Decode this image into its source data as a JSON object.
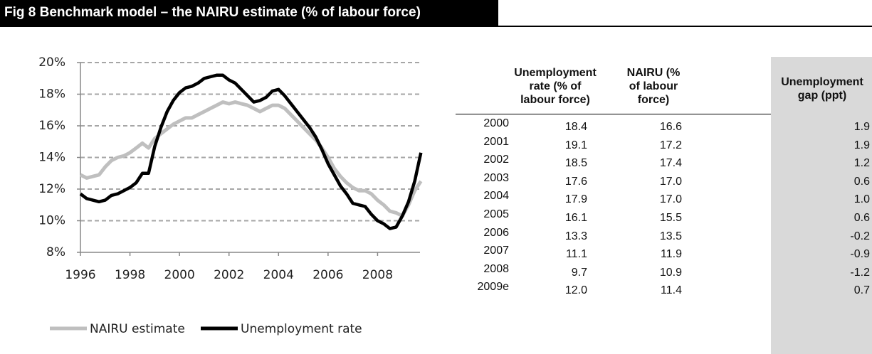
{
  "title": "Fig 8 Benchmark model – the NAIRU estimate (% of labour force)",
  "chart_data": {
    "type": "line",
    "x": [
      1996,
      1996.25,
      1996.5,
      1996.75,
      1997,
      1997.25,
      1997.5,
      1997.75,
      1998,
      1998.25,
      1998.5,
      1998.75,
      1999,
      1999.25,
      1999.5,
      1999.75,
      2000,
      2000.25,
      2000.5,
      2000.75,
      2001,
      2001.25,
      2001.5,
      2001.75,
      2002,
      2002.25,
      2002.5,
      2002.75,
      2003,
      2003.25,
      2003.5,
      2003.75,
      2004,
      2004.25,
      2004.5,
      2004.75,
      2005,
      2005.25,
      2005.5,
      2005.75,
      2006,
      2006.25,
      2006.5,
      2006.75,
      2007,
      2007.25,
      2007.5,
      2007.75,
      2008,
      2008.25,
      2008.5,
      2008.75,
      2009,
      2009.25,
      2009.5,
      2009.75
    ],
    "series": [
      {
        "name": "NAIRU estimate",
        "color": "#bfbfbf",
        "values": [
          12.9,
          12.7,
          12.8,
          12.9,
          13.4,
          13.8,
          14.0,
          14.1,
          14.3,
          14.6,
          14.9,
          14.6,
          15.2,
          15.5,
          15.8,
          16.1,
          16.3,
          16.5,
          16.5,
          16.7,
          16.9,
          17.1,
          17.3,
          17.5,
          17.4,
          17.5,
          17.4,
          17.3,
          17.1,
          16.9,
          17.1,
          17.3,
          17.3,
          17.1,
          16.7,
          16.3,
          15.9,
          15.5,
          15.1,
          14.6,
          14.0,
          13.3,
          12.8,
          12.4,
          12.1,
          11.9,
          11.9,
          11.7,
          11.3,
          11.0,
          10.6,
          10.5,
          10.3,
          11.0,
          11.9,
          12.5
        ]
      },
      {
        "name": "Unemployment rate",
        "color": "#000000",
        "values": [
          11.7,
          11.4,
          11.3,
          11.2,
          11.3,
          11.6,
          11.7,
          11.9,
          12.1,
          12.4,
          13.0,
          13.0,
          14.7,
          15.9,
          16.9,
          17.6,
          18.1,
          18.4,
          18.5,
          18.7,
          19.0,
          19.1,
          19.2,
          19.2,
          18.9,
          18.7,
          18.3,
          17.9,
          17.5,
          17.6,
          17.8,
          18.2,
          18.3,
          17.9,
          17.4,
          16.9,
          16.4,
          15.9,
          15.3,
          14.5,
          13.6,
          12.9,
          12.2,
          11.7,
          11.1,
          11.0,
          10.9,
          10.4,
          10.0,
          9.8,
          9.5,
          9.6,
          10.3,
          11.2,
          12.5,
          14.3
        ]
      }
    ],
    "xlim": [
      1996,
      2010
    ],
    "xticks": [
      1996,
      1998,
      2000,
      2002,
      2004,
      2006,
      2008
    ],
    "ylim": [
      8,
      20
    ],
    "yticks": [
      {
        "value": 8,
        "label": "8%"
      },
      {
        "value": 10,
        "label": "10%"
      },
      {
        "value": 12,
        "label": "12%"
      },
      {
        "value": 14,
        "label": "14%"
      },
      {
        "value": 16,
        "label": "16%"
      },
      {
        "value": 18,
        "label": "18%"
      },
      {
        "value": 20,
        "label": "20%"
      }
    ],
    "grid": true,
    "legend": "bottom"
  },
  "table": {
    "header": [
      "Unemployment rate (% of labour force)",
      "NAIRU (% of labour force)",
      "Unemployment gap (ppt)"
    ],
    "rows": [
      [
        "2000",
        "18.4",
        "16.6",
        "1.9"
      ],
      [
        "2001",
        "19.1",
        "17.2",
        "1.9"
      ],
      [
        "2002",
        "18.5",
        "17.4",
        "1.2"
      ],
      [
        "2003",
        "17.6",
        "17.0",
        "0.6"
      ],
      [
        "2004",
        "17.9",
        "17.0",
        "1.0"
      ],
      [
        "2005",
        "16.1",
        "15.5",
        "0.6"
      ],
      [
        "2006",
        "13.3",
        "13.5",
        "-0.2"
      ],
      [
        "2007",
        "11.1",
        "11.9",
        "-0.9"
      ],
      [
        "2008",
        "9.7",
        "10.9",
        "-1.2"
      ],
      [
        "2009e",
        "12.0",
        "11.4",
        "0.7"
      ]
    ]
  }
}
